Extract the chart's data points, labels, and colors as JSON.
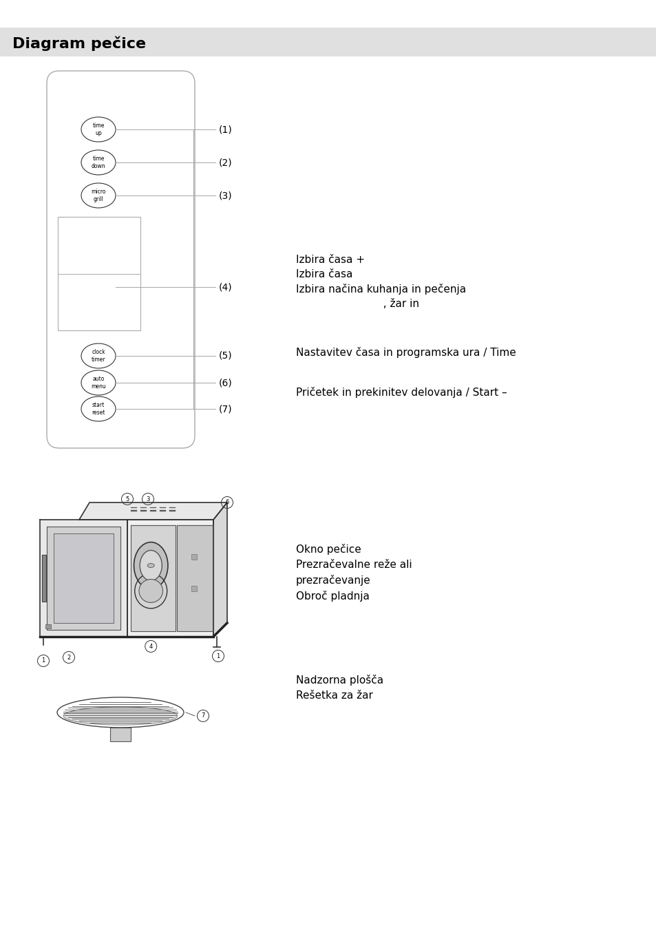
{
  "title": "Diagram pečice",
  "title_bg": "#e0e0e0",
  "bg_color": "#ffffff",
  "btn_top": [
    "time\nup",
    "time\ndown",
    "micro\ngrill"
  ],
  "btn_bot": [
    "clock\ntimer",
    "auto\nmenu",
    "start\nreset"
  ],
  "labels": [
    "(1)",
    "(2)",
    "(3)",
    "(4)",
    "(5)",
    "(6)",
    "(7)"
  ],
  "desc_134": "Izbira časa +\nIzbira časa\nIzbira načina kuhanja in pečenja\n                          , žar in",
  "desc_5": "Nastavitev časa in programska ura / Time",
  "desc_67": "Pričetek in prekinitev delovanja / Start –",
  "bot_desc1": "Okno pečice",
  "bot_desc2": "Prezračevalne reže ali\nprezračevanje",
  "bot_desc3": "Obroč pladnja",
  "bot_desc4": "Nadzorna plošča",
  "bot_desc5": "Rešetka za žar"
}
